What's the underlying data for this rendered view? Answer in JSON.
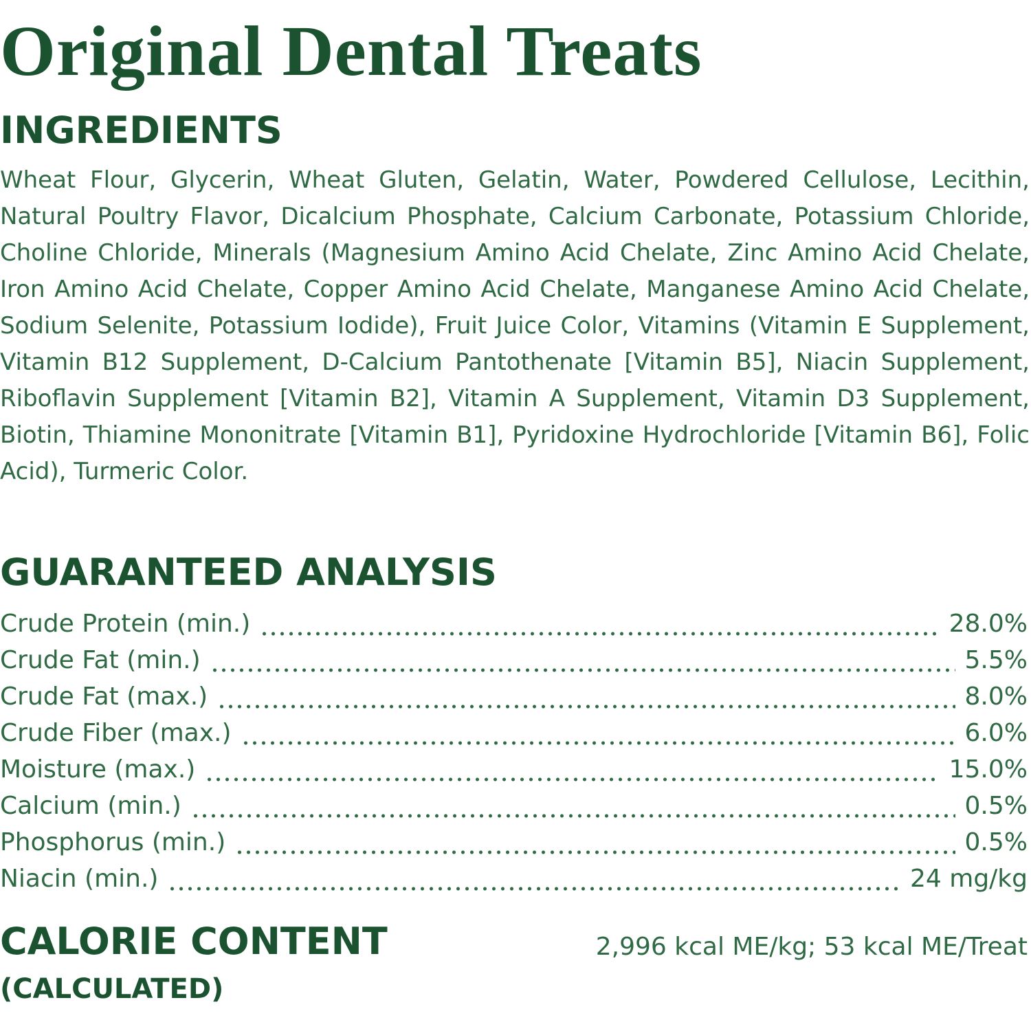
{
  "title": "Original Dental Treats",
  "ingredients": {
    "heading": "INGREDIENTS",
    "text": "Wheat Flour, Glycerin, Wheat Gluten, Gelatin, Water, Powdered Cellulose, Lecithin, Natural Poultry Flavor, Dicalcium Phosphate, Calcium Carbonate, Potassium Chloride, Choline Chloride, Minerals (Magnesium Amino Acid Chelate, Zinc Amino Acid Chelate, Iron Amino Acid Chelate, Copper Amino Acid Chelate, Manganese Amino Acid Chelate, Sodium Selenite, Potassium Iodide), Fruit Juice Color, Vitamins (Vitamin E Supplement, Vitamin B12 Supplement, D-Calcium Pantothenate [Vitamin B5], Niacin Supplement, Riboflavin Supplement [Vitamin B2], Vitamin A Supplement, Vitamin D3 Supplement, Biotin, Thiamine Mononitrate [Vitamin B1], Pyridoxine Hydrochloride [Vitamin B6], Folic Acid), Turmeric Color."
  },
  "guaranteed_analysis": {
    "heading": "GUARANTEED ANALYSIS",
    "rows": [
      [
        "Crude Protein (min.)",
        "28.0%"
      ],
      [
        "Crude Fat (min.)",
        "5.5%"
      ],
      [
        "Crude Fat (max.)",
        "8.0%"
      ],
      [
        "Crude Fiber (max.)",
        "6.0%"
      ],
      [
        "Moisture (max.)",
        "15.0%"
      ],
      [
        "Calcium (min.)",
        "0.5%"
      ],
      [
        "Phosphorus (min.)",
        "0.5%"
      ],
      [
        "Niacin (min.)",
        "24 mg/kg"
      ]
    ]
  },
  "calorie_content": {
    "heading": "CALORIE CONTENT",
    "subheading": "(CALCULATED)",
    "text": "2,996 kcal ME/kg; 53 kcal ME/Treat"
  }
}
